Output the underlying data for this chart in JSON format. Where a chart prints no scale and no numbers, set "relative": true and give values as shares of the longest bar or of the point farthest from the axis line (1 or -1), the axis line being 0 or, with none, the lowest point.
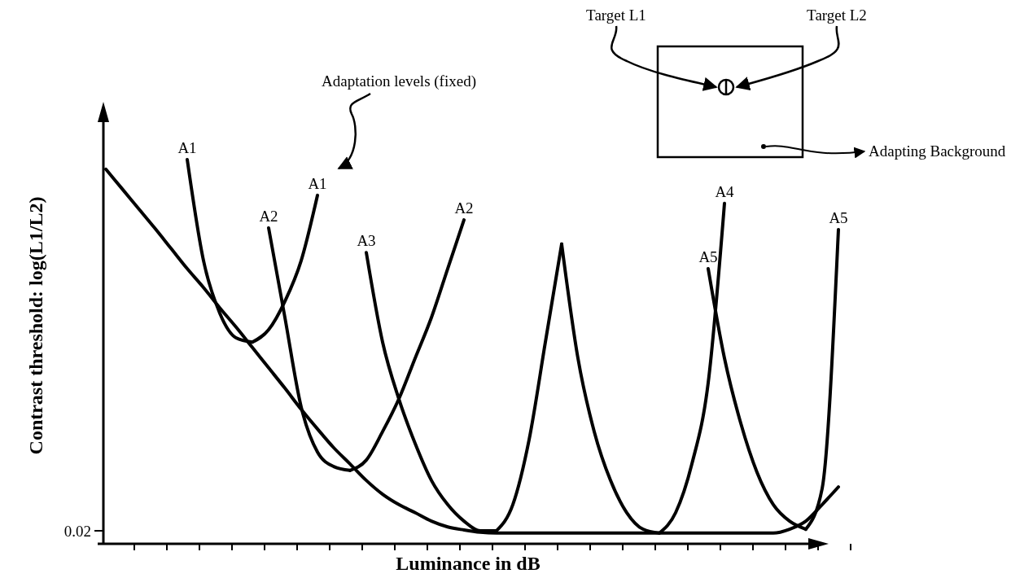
{
  "chart_data": {
    "type": "line",
    "relative": true,
    "xlabel": "Luminance in dB",
    "ylabel": "Contrast threshold: log(L1/L2)",
    "marker": "none",
    "line_style": "solid",
    "categories": [
      null,
      null,
      null,
      null,
      null,
      null,
      null,
      null,
      null,
      null,
      null,
      null,
      null,
      null,
      null,
      null,
      null,
      null,
      null,
      null,
      null,
      null,
      null,
      null,
      null,
      null,
      null,
      null,
      null,
      null,
      null,
      null,
      null,
      null,
      null,
      null,
      null,
      null,
      null,
      null,
      null,
      null,
      null,
      null,
      null,
      null
    ],
    "annotations": [
      "0.02",
      "Adaptation levels (fixed)",
      "Target L1",
      "Target L2",
      "Adapting Background"
    ],
    "series": [
      {
        "color": "#000000",
        "values": [
          0.975,
          0.924,
          0.873,
          0.822,
          0.769,
          0.716,
          0.667,
          0.614,
          0.564,
          0.511,
          0.458,
          0.405,
          0.35,
          0.299,
          0.25,
          0.208,
          0.165,
          0.129,
          0.102,
          0.081,
          0.059,
          0.044,
          0.036,
          0.03,
          0.028,
          0.028,
          0.028,
          0.028,
          0.028,
          0.028,
          0.028,
          0.028,
          0.028,
          0.028,
          0.028,
          0.028,
          0.028,
          0.028,
          0.028,
          0.028,
          0.028,
          0.028,
          0.038,
          0.059,
          0.102,
          0.148
        ]
      },
      {
        "name": "A1",
        "color": "#000000",
        "values": [
          null,
          null,
          null,
          null,
          null,
          1.0,
          0.737,
          0.6,
          0.536,
          0.525,
          null,
          null,
          null,
          null,
          null,
          null,
          null,
          null,
          null,
          null,
          null,
          null,
          null,
          null,
          null,
          null,
          null,
          null,
          null,
          null,
          null,
          null,
          null,
          null,
          null,
          null,
          null,
          null,
          null,
          null,
          null,
          null,
          null,
          null,
          null,
          null
        ]
      },
      {
        "name": "A1",
        "color": "#000000",
        "values": [
          null,
          null,
          null,
          null,
          null,
          null,
          null,
          null,
          null,
          0.525,
          0.557,
          0.631,
          0.737,
          0.907,
          null,
          null,
          null,
          null,
          null,
          null,
          null,
          null,
          null,
          null,
          null,
          null,
          null,
          null,
          null,
          null,
          null,
          null,
          null,
          null,
          null,
          null,
          null,
          null,
          null,
          null,
          null,
          null,
          null,
          null,
          null,
          null
        ]
      },
      {
        "name": "A2",
        "color": "#000000",
        "values": [
          null,
          null,
          null,
          null,
          null,
          null,
          null,
          null,
          null,
          null,
          0.822,
          0.589,
          0.356,
          0.239,
          0.201,
          0.191,
          null,
          null,
          null,
          null,
          null,
          null,
          null,
          null,
          null,
          null,
          null,
          null,
          null,
          null,
          null,
          null,
          null,
          null,
          null,
          null,
          null,
          null,
          null,
          null,
          null,
          null,
          null,
          null,
          null,
          null
        ]
      },
      {
        "name": "A2",
        "color": "#000000",
        "values": [
          null,
          null,
          null,
          null,
          null,
          null,
          null,
          null,
          null,
          null,
          null,
          null,
          null,
          null,
          null,
          0.191,
          0.218,
          0.292,
          0.377,
          0.483,
          0.589,
          0.716,
          0.843,
          null,
          null,
          null,
          null,
          null,
          null,
          null,
          null,
          null,
          null,
          null,
          null,
          null,
          null,
          null,
          null,
          null,
          null,
          null,
          null,
          null,
          null,
          null
        ]
      },
      {
        "name": "A3",
        "color": "#000000",
        "values": [
          null,
          null,
          null,
          null,
          null,
          null,
          null,
          null,
          null,
          null,
          null,
          null,
          null,
          null,
          null,
          null,
          0.758,
          0.525,
          0.377,
          0.261,
          0.165,
          0.102,
          0.059,
          0.034,
          0.034,
          null,
          null,
          null,
          null,
          null,
          null,
          null,
          null,
          null,
          null,
          null,
          null,
          null,
          null,
          null,
          null,
          null,
          null,
          null,
          null,
          null
        ]
      },
      {
        "color": "#000000",
        "values": [
          null,
          null,
          null,
          null,
          null,
          null,
          null,
          null,
          null,
          null,
          null,
          null,
          null,
          null,
          null,
          null,
          null,
          null,
          null,
          null,
          null,
          null,
          null,
          null,
          0.034,
          0.102,
          0.271,
          0.525,
          0.78,
          null,
          null,
          null,
          null,
          null,
          null,
          null,
          null,
          null,
          null,
          null,
          null,
          null,
          null,
          null,
          null,
          null
        ]
      },
      {
        "color": "#000000",
        "values": [
          null,
          null,
          null,
          null,
          null,
          null,
          null,
          null,
          null,
          null,
          null,
          null,
          null,
          null,
          null,
          null,
          null,
          null,
          null,
          null,
          null,
          null,
          null,
          null,
          null,
          null,
          null,
          null,
          0.78,
          0.483,
          0.292,
          0.165,
          0.081,
          0.038,
          0.028,
          null,
          null,
          null,
          null,
          null,
          null,
          null,
          null,
          null,
          null,
          null
        ]
      },
      {
        "name": "A4",
        "color": "#000000",
        "values": [
          null,
          null,
          null,
          null,
          null,
          null,
          null,
          null,
          null,
          null,
          null,
          null,
          null,
          null,
          null,
          null,
          null,
          null,
          null,
          null,
          null,
          null,
          null,
          null,
          null,
          null,
          null,
          null,
          null,
          null,
          null,
          null,
          null,
          null,
          0.028,
          0.081,
          0.208,
          0.419,
          0.886,
          null,
          null,
          null,
          null,
          null,
          null,
          null
        ]
      },
      {
        "name": "A5",
        "color": "#000000",
        "values": [
          null,
          null,
          null,
          null,
          null,
          null,
          null,
          null,
          null,
          null,
          null,
          null,
          null,
          null,
          null,
          null,
          null,
          null,
          null,
          null,
          null,
          null,
          null,
          null,
          null,
          null,
          null,
          null,
          null,
          null,
          null,
          null,
          null,
          null,
          null,
          null,
          null,
          0.716,
          0.483,
          0.314,
          0.186,
          0.102,
          0.059,
          0.038,
          null,
          null
        ]
      },
      {
        "name": "A5",
        "color": "#000000",
        "values": [
          null,
          null,
          null,
          null,
          null,
          null,
          null,
          null,
          null,
          null,
          null,
          null,
          null,
          null,
          null,
          null,
          null,
          null,
          null,
          null,
          null,
          null,
          null,
          null,
          null,
          null,
          null,
          null,
          null,
          null,
          null,
          null,
          null,
          null,
          null,
          null,
          null,
          null,
          null,
          null,
          null,
          null,
          null,
          0.038,
          0.144,
          0.818
        ]
      }
    ]
  }
}
